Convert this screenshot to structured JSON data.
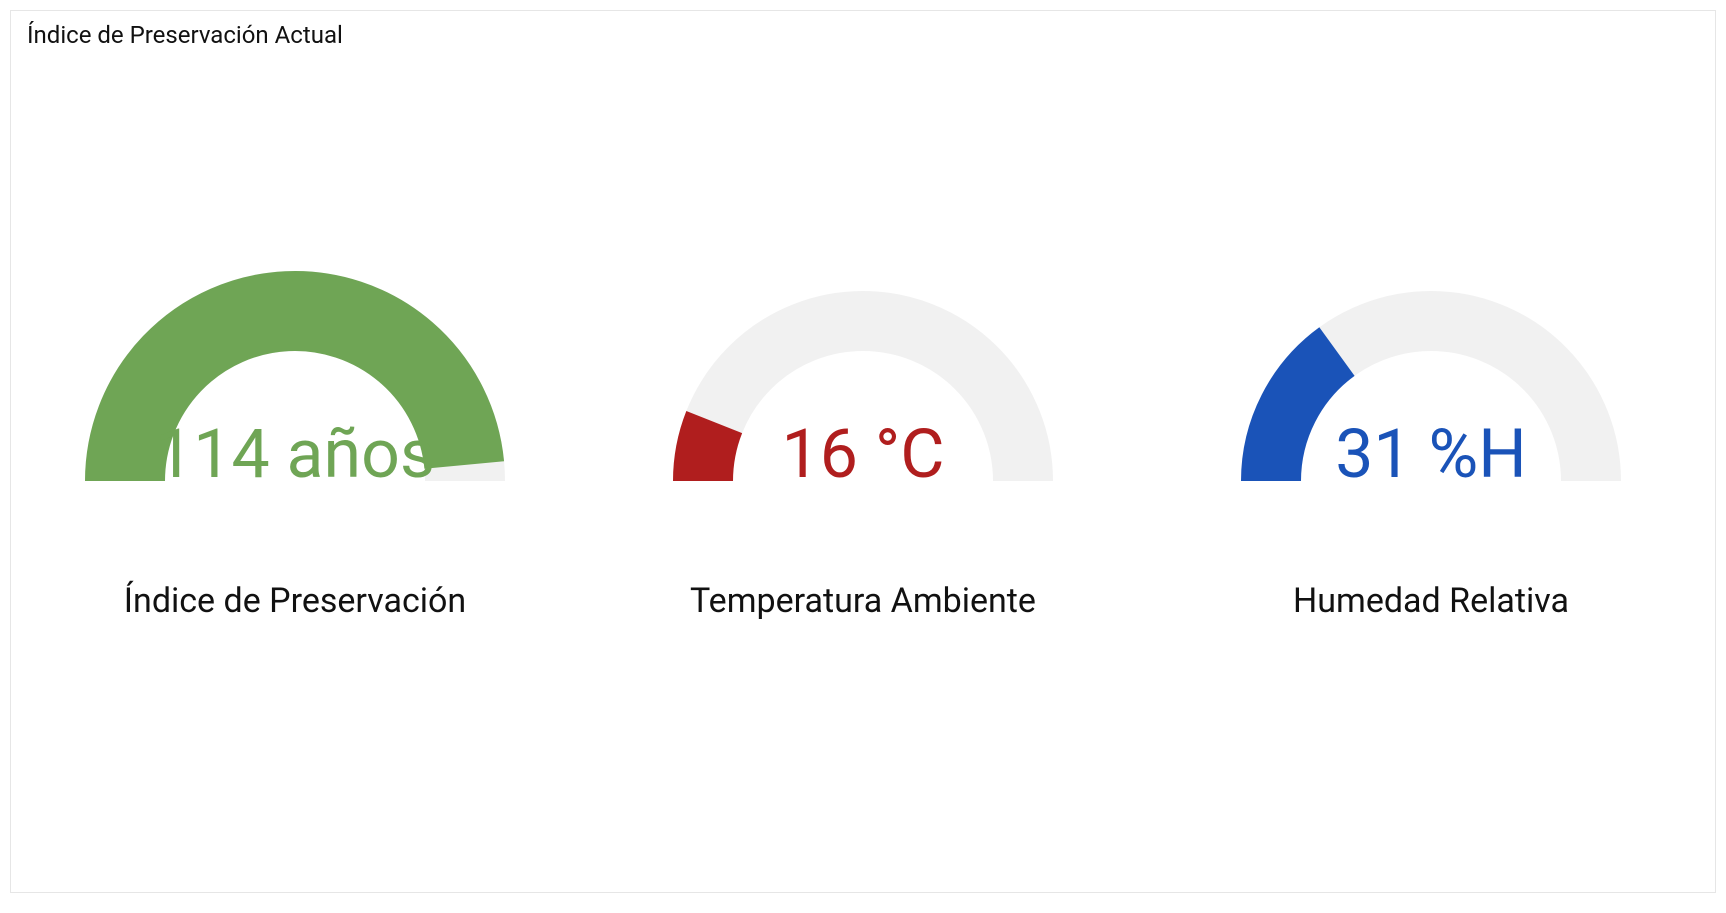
{
  "panel": {
    "title": "Índice de Preservación Actual",
    "background_color": "#ffffff",
    "border_color": "#e6e6e6",
    "title_color": "#111111",
    "title_fontsize": 24
  },
  "gauges": [
    {
      "id": "preservation-index",
      "label": "Índice de Preservación",
      "value_text": "114 años",
      "fraction": 0.97,
      "outer_radius": 210,
      "inner_radius": 130,
      "stroke_width": 80,
      "track_color": "#f1f1f1",
      "fill_color": "#6fa555",
      "value_color": "#6fa555",
      "value_fontsize": 68,
      "label_color": "#111111",
      "label_fontsize": 34
    },
    {
      "id": "ambient-temperature",
      "label": "Temperatura Ambiente",
      "value_text": "16 °C",
      "fraction": 0.12,
      "outer_radius": 190,
      "inner_radius": 130,
      "stroke_width": 60,
      "track_color": "#f1f1f1",
      "fill_color": "#b01e1e",
      "value_color": "#b01e1e",
      "value_fontsize": 68,
      "label_color": "#111111",
      "label_fontsize": 34
    },
    {
      "id": "relative-humidity",
      "label": "Humedad Relativa",
      "value_text": "31 %H",
      "fraction": 0.3,
      "outer_radius": 190,
      "inner_radius": 130,
      "stroke_width": 60,
      "track_color": "#f1f1f1",
      "fill_color": "#1a53b8",
      "value_color": "#1a53b8",
      "value_fontsize": 68,
      "label_color": "#111111",
      "label_fontsize": 34
    }
  ]
}
